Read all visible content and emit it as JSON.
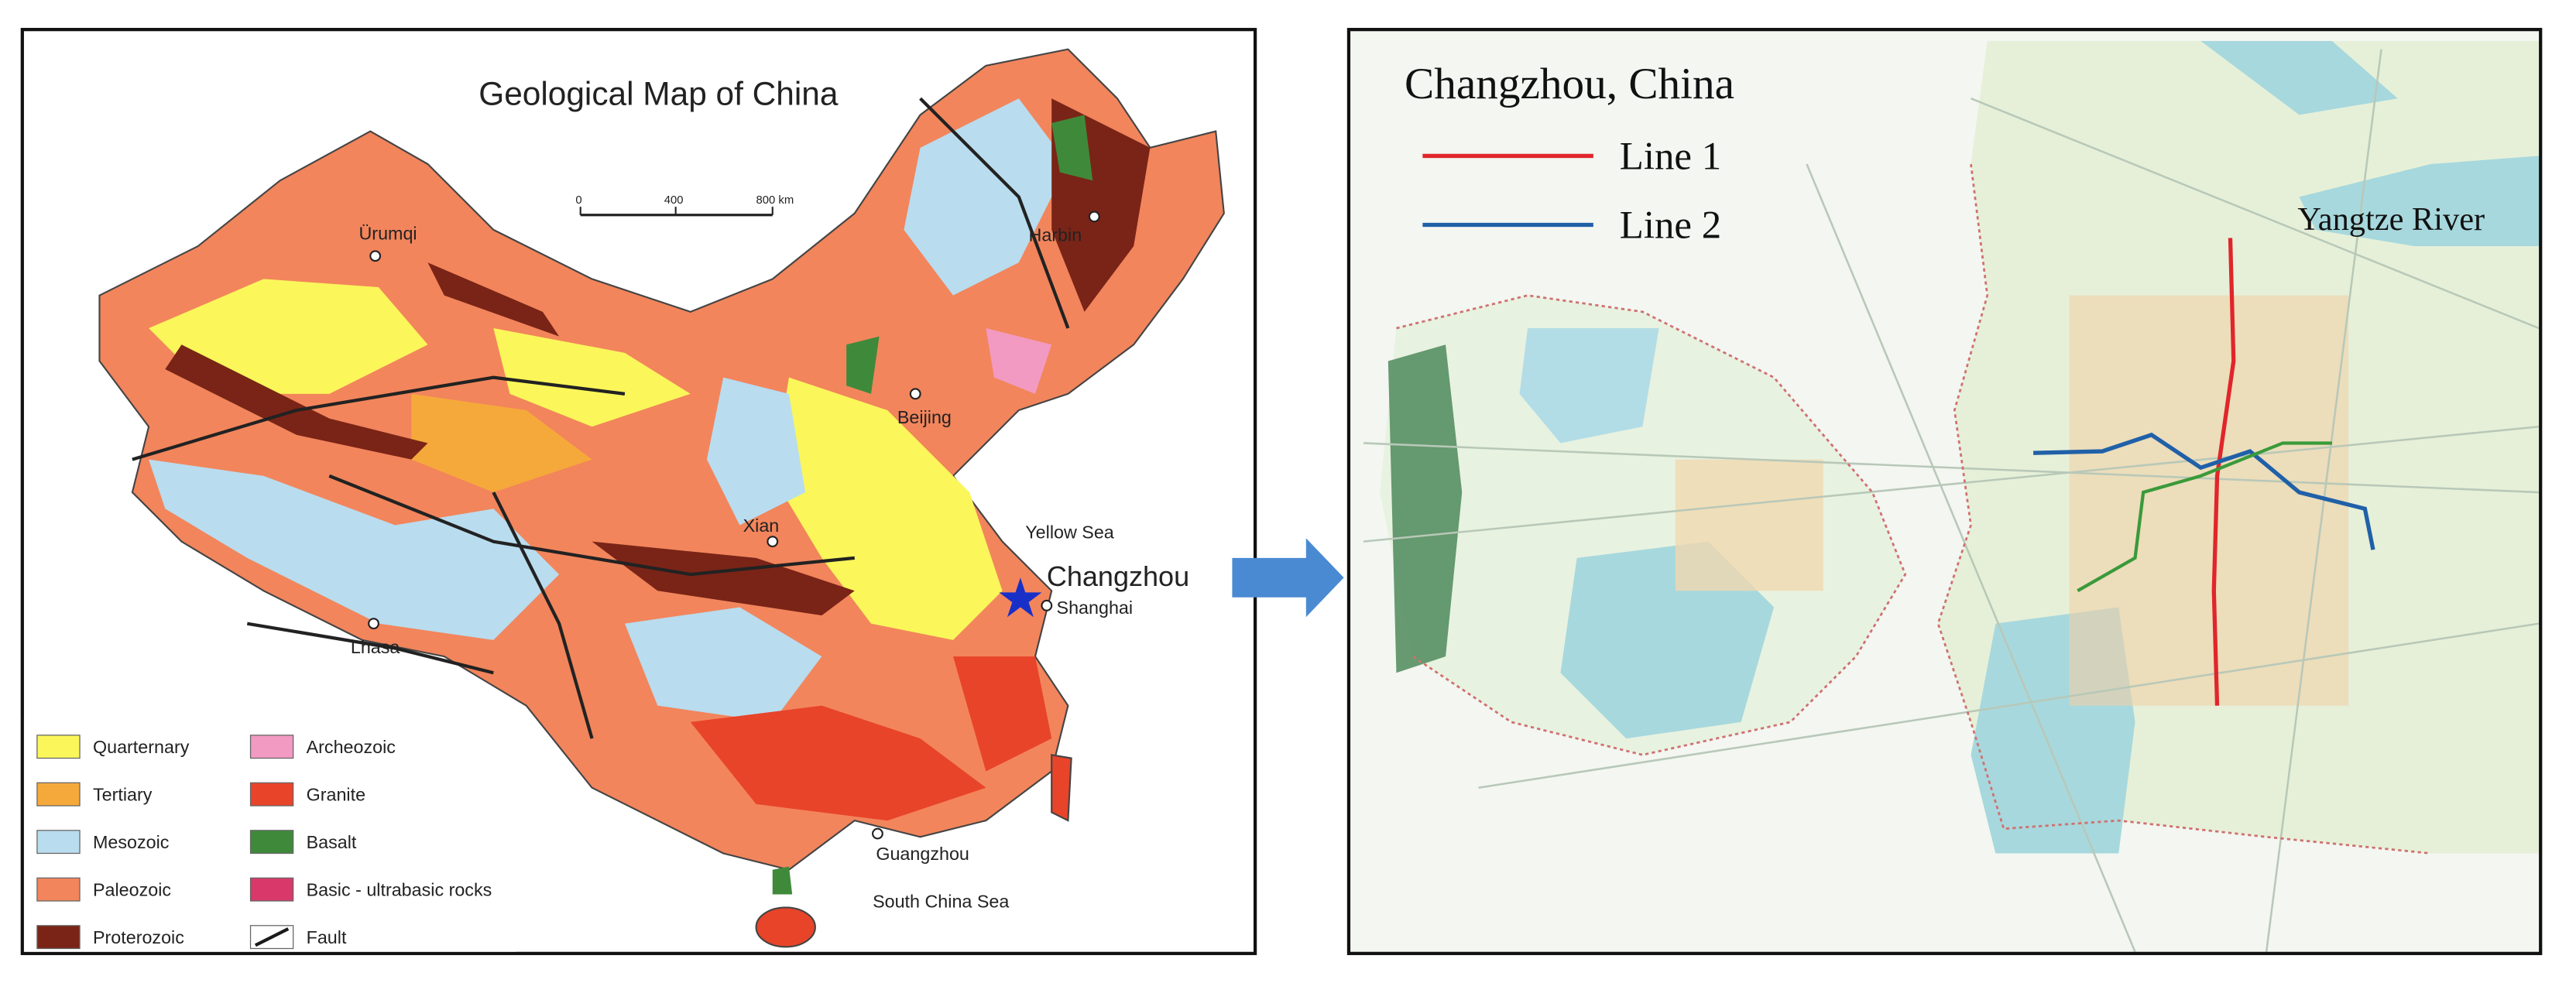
{
  "left_map": {
    "title": "Geological Map of China",
    "scale": [
      "0",
      "400",
      "800 km"
    ],
    "places": [
      "Ürumqi",
      "Harbin",
      "Beijing",
      "Xian",
      "Lhasa",
      "Yellow Sea",
      "Changzhou",
      "Shanghai",
      "Guangzhou",
      "South China Sea"
    ],
    "legend": [
      {
        "label": "Quarternary",
        "color": "#fbf65a"
      },
      {
        "label": "Tertiary",
        "color": "#f6a93b"
      },
      {
        "label": "Mesozoic",
        "color": "#b9dcee"
      },
      {
        "label": "Paleozoic",
        "color": "#f2855c"
      },
      {
        "label": "Proterozoic",
        "color": "#7a2417"
      },
      {
        "label": "Archeozoic",
        "color": "#f29ac1"
      },
      {
        "label": "Granite",
        "color": "#e8442a"
      },
      {
        "label": "Basalt",
        "color": "#3f8a3a"
      },
      {
        "label": "Basic - ultrabasic rocks",
        "color": "#d8396a"
      },
      {
        "label": "Fault",
        "color": "#1a1a1a",
        "symbol": "line"
      }
    ]
  },
  "right_map": {
    "title": "Changzhou, China",
    "lines": [
      {
        "label": "Line 1",
        "color": "#e0262b"
      },
      {
        "label": "Line 2",
        "color": "#2060a8"
      }
    ],
    "river": "Yangtze River"
  }
}
